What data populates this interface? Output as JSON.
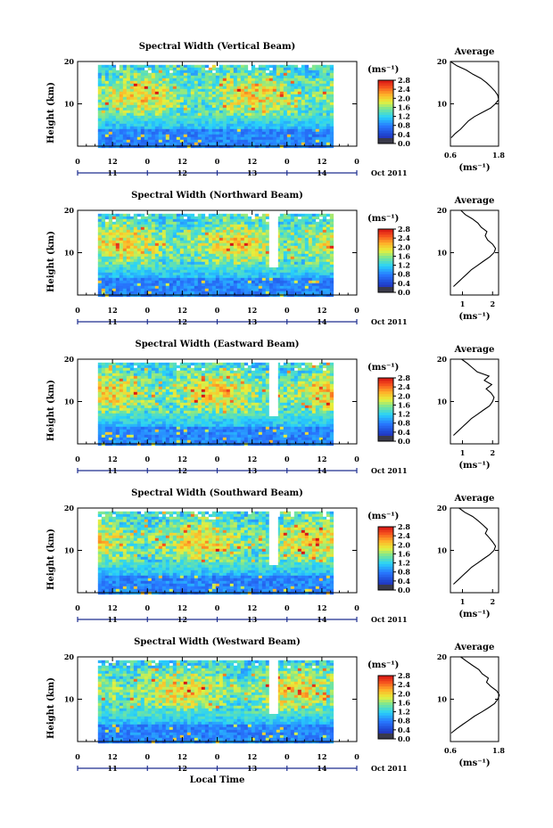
{
  "figure": {
    "xlabel": "Local Time",
    "date_label": "Oct 2011",
    "panel_ylabel": "Height (km)",
    "colorbar_unit": "(ms⁻¹)",
    "colorbar_ticks": [
      "0.0",
      "0.4",
      "0.8",
      "1.2",
      "1.6",
      "2.0",
      "2.4",
      "2.8"
    ],
    "hour_ticks": [
      "0",
      "12",
      "0",
      "12",
      "0",
      "12",
      "0",
      "12",
      "0"
    ],
    "day_ticks": [
      "11",
      "12",
      "13",
      "14"
    ],
    "y_ticks": [
      "20",
      "10"
    ],
    "avg_title": "Average",
    "avg_xlabel": "(ms⁻¹)"
  },
  "chart_data": [
    {
      "type": "heatmap",
      "title": "Spectral Width (Vertical Beam)",
      "ylabel": "Height (km)",
      "ylim": [
        0,
        20
      ],
      "xlabel": "Local Time",
      "x_range_hours": [
        0,
        96
      ],
      "data_coverage_hours": [
        7,
        87
      ],
      "colorbar_range": [
        0.0,
        2.8
      ],
      "avg_profile": {
        "title": "Average",
        "xlabel": "(ms⁻¹)",
        "xticks": [
          "0.6",
          "1.8"
        ],
        "xlim": [
          0.6,
          1.8
        ],
        "height": [
          2,
          3,
          4,
          5,
          6,
          7,
          8,
          9,
          10,
          11,
          12,
          13,
          14,
          15,
          16,
          17,
          18,
          19,
          20
        ],
        "value": [
          0.62,
          0.72,
          0.85,
          0.95,
          1.05,
          1.2,
          1.4,
          1.6,
          1.72,
          1.8,
          1.78,
          1.72,
          1.62,
          1.5,
          1.35,
          1.18,
          0.98,
          0.78,
          0.62
        ]
      }
    },
    {
      "type": "heatmap",
      "title": "Spectral Width (Northward Beam)",
      "ylabel": "Height (km)",
      "ylim": [
        0,
        20
      ],
      "xlabel": "Local Time",
      "x_range_hours": [
        0,
        96
      ],
      "data_coverage_hours": [
        7,
        87
      ],
      "colorbar_range": [
        0.0,
        2.8
      ],
      "avg_profile": {
        "title": "Average",
        "xlabel": "(ms⁻¹)",
        "xticks": [
          "1",
          "2"
        ],
        "xlim": [
          0.6,
          2.2
        ],
        "height": [
          2,
          3,
          4,
          5,
          6,
          7,
          8,
          9,
          10,
          11,
          12,
          13,
          14,
          15,
          16,
          17,
          18,
          19,
          20
        ],
        "value": [
          0.7,
          0.85,
          1.0,
          1.15,
          1.3,
          1.5,
          1.7,
          1.9,
          2.05,
          2.1,
          2.0,
          1.85,
          1.78,
          1.8,
          1.6,
          1.5,
          1.3,
          1.1,
          0.95
        ]
      }
    },
    {
      "type": "heatmap",
      "title": "Spectral Width (Eastward Beam)",
      "ylabel": "Height (km)",
      "ylim": [
        0,
        20
      ],
      "xlabel": "Local Time",
      "x_range_hours": [
        0,
        96
      ],
      "data_coverage_hours": [
        7,
        87
      ],
      "colorbar_range": [
        0.0,
        2.8
      ],
      "avg_profile": {
        "title": "Average",
        "xlabel": "(ms⁻¹)",
        "xticks": [
          "1",
          "2"
        ],
        "xlim": [
          0.6,
          2.2
        ],
        "height": [
          2,
          3,
          4,
          5,
          6,
          7,
          8,
          9,
          10,
          11,
          12,
          13,
          14,
          15,
          16,
          17,
          18,
          19,
          20
        ],
        "value": [
          0.7,
          0.85,
          1.0,
          1.15,
          1.3,
          1.5,
          1.7,
          1.9,
          2.0,
          2.05,
          1.95,
          1.8,
          1.95,
          1.7,
          1.85,
          1.5,
          1.35,
          1.15,
          0.95
        ]
      }
    },
    {
      "type": "heatmap",
      "title": "Spectral Width (Southward Beam)",
      "ylabel": "Height (km)",
      "ylim": [
        0,
        20
      ],
      "xlabel": "Local Time",
      "x_range_hours": [
        0,
        96
      ],
      "data_coverage_hours": [
        7,
        87
      ],
      "colorbar_range": [
        0.0,
        2.8
      ],
      "avg_profile": {
        "title": "Average",
        "xlabel": "(ms⁻¹)",
        "xticks": [
          "1",
          "2"
        ],
        "xlim": [
          0.6,
          2.2
        ],
        "height": [
          2,
          3,
          4,
          5,
          6,
          7,
          8,
          9,
          10,
          11,
          12,
          13,
          14,
          15,
          16,
          17,
          18,
          19,
          20
        ],
        "value": [
          0.7,
          0.85,
          1.0,
          1.15,
          1.3,
          1.5,
          1.7,
          1.9,
          2.05,
          2.1,
          2.0,
          1.9,
          1.75,
          1.85,
          1.7,
          1.55,
          1.35,
          1.1,
          0.9
        ]
      }
    },
    {
      "type": "heatmap",
      "title": "Spectral Width (Westward Beam)",
      "ylabel": "Height (km)",
      "ylim": [
        0,
        20
      ],
      "xlabel": "Local Time",
      "x_range_hours": [
        0,
        96
      ],
      "data_coverage_hours": [
        7,
        87
      ],
      "colorbar_range": [
        0.0,
        2.8
      ],
      "avg_profile": {
        "title": "Average",
        "xlabel": "(ms⁻¹)",
        "xticks": [
          "0.6",
          "1.8"
        ],
        "xlim": [
          0.6,
          1.8
        ],
        "height": [
          2,
          3,
          4,
          5,
          6,
          7,
          8,
          9,
          10,
          11,
          12,
          13,
          14,
          15,
          16,
          17,
          18,
          19,
          20
        ],
        "value": [
          0.62,
          0.75,
          0.9,
          1.05,
          1.2,
          1.38,
          1.55,
          1.7,
          1.78,
          1.82,
          1.75,
          1.62,
          1.5,
          1.55,
          1.4,
          1.3,
          1.15,
          1.0,
          0.85
        ]
      }
    }
  ]
}
